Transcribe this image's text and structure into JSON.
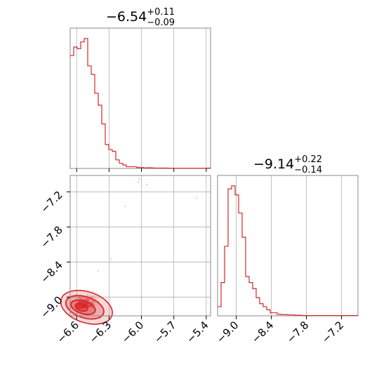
{
  "chart_data": [
    {
      "type": "histogram",
      "panel": "marginal-param-1",
      "title": {
        "median": "−6.54",
        "plus": "+0.11",
        "minus": "−0.09"
      },
      "x_range": [
        -6.66,
        -5.36
      ],
      "x_ticks": [
        -6.6,
        -6.3,
        -6.0,
        -5.7,
        -5.4
      ],
      "bin_edges_start": -6.66,
      "bin_width": 0.0325,
      "counts": [
        66,
        71,
        70,
        74,
        76,
        60,
        55,
        44,
        37,
        26,
        14,
        11,
        10,
        5,
        3,
        2,
        1,
        1,
        1,
        0.5,
        0.5,
        0.3,
        0.4,
        0.3,
        0.2,
        0.2,
        0.2,
        0.2,
        0.1,
        0.1,
        0.1,
        0.1,
        0.1,
        0.1,
        0.1,
        0.1,
        0.1,
        0.1,
        0.1,
        0.2
      ],
      "grid": true
    },
    {
      "type": "histogram",
      "panel": "marginal-param-2",
      "title": {
        "median": "−9.14",
        "plus": "+0.22",
        "minus": "−0.14"
      },
      "x_range": [
        -9.32,
        -6.92
      ],
      "x_ticks": [
        -9.0,
        -8.4,
        -7.8,
        -7.2
      ],
      "bin_edges_start": -9.32,
      "bin_width": 0.06,
      "counts": [
        3,
        11,
        23,
        42,
        43,
        40,
        34,
        26,
        13,
        11,
        9,
        6,
        4,
        3,
        2,
        1,
        1,
        0.5,
        0.4,
        0.4,
        0.3,
        0.3,
        0.2,
        0.2,
        0.1,
        0.1,
        0.1,
        0.1,
        0.1,
        0.1,
        0.1,
        0.1,
        0.1,
        0.1,
        0.1,
        0.1,
        0.1,
        0.1,
        0.1,
        0.1
      ],
      "grid": true
    },
    {
      "type": "scatter",
      "panel": "joint-param-1-vs-param-2",
      "x_range": [
        -6.66,
        -5.36
      ],
      "y_range": [
        -9.32,
        -6.92
      ],
      "x_ticks": [
        -6.6,
        -6.3,
        -6.0,
        -5.7,
        -5.4
      ],
      "y_ticks": [
        -9.0,
        -8.4,
        -7.8,
        -7.2
      ],
      "density_center": {
        "x": -6.57,
        "y": -9.15
      },
      "outliers": [
        {
          "x": -6.02,
          "y": -6.98
        },
        {
          "x": -6.03,
          "y": -7.03
        },
        {
          "x": -5.95,
          "y": -7.08
        },
        {
          "x": -6.15,
          "y": -7.45
        },
        {
          "x": -5.49,
          "y": -7.31
        },
        {
          "x": -6.28,
          "y": -8.35
        },
        {
          "x": -6.4,
          "y": -8.55
        }
      ],
      "grid": true
    }
  ],
  "colors": {
    "series": "#d62728",
    "grid": "#b0b0b0",
    "frame": "#888888"
  }
}
